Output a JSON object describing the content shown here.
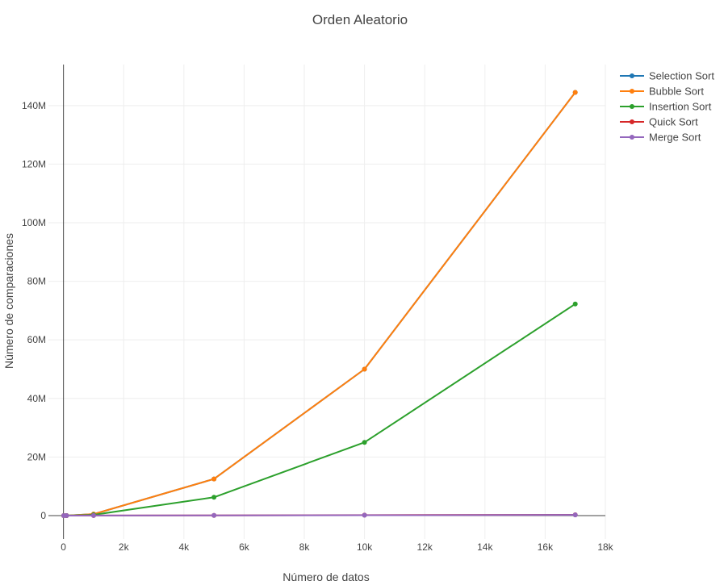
{
  "chart_data": {
    "type": "line",
    "title": "Orden Aleatorio",
    "xlabel": "Número de datos",
    "ylabel": "Número de comparaciones",
    "xlim": [
      -500,
      18000
    ],
    "ylim": [
      -8000000,
      154000000
    ],
    "x_ticks": [
      0,
      2000,
      4000,
      6000,
      8000,
      10000,
      12000,
      14000,
      16000,
      18000
    ],
    "x_tick_labels": [
      "0",
      "2k",
      "4k",
      "6k",
      "8k",
      "10k",
      "12k",
      "14k",
      "16k",
      "18k"
    ],
    "y_ticks": [
      0,
      20000000,
      40000000,
      60000000,
      80000000,
      100000000,
      120000000,
      140000000
    ],
    "y_tick_labels": [
      "0",
      "20M",
      "40M",
      "60M",
      "80M",
      "100M",
      "120M",
      "140M"
    ],
    "grid": true,
    "legend_position": "top-right",
    "x": [
      10,
      100,
      1000,
      5000,
      10000,
      17000
    ],
    "series": [
      {
        "name": "Selection Sort",
        "color": "#1f77b4",
        "values": [
          45,
          4950,
          499500,
          12497500,
          49995000,
          144491500
        ]
      },
      {
        "name": "Bubble Sort",
        "color": "#ff7f0e",
        "values": [
          45,
          4950,
          499500,
          12497500,
          49995000,
          144491500
        ]
      },
      {
        "name": "Insertion Sort",
        "color": "#2ca02c",
        "values": [
          25,
          2500,
          250000,
          6250000,
          25000000,
          72250000
        ]
      },
      {
        "name": "Quick Sort",
        "color": "#d62728",
        "values": [
          30,
          650,
          11000,
          70000,
          155000,
          280000
        ]
      },
      {
        "name": "Merge Sort",
        "color": "#9467bd",
        "values": [
          25,
          540,
          8700,
          55000,
          120000,
          220000
        ]
      }
    ]
  }
}
